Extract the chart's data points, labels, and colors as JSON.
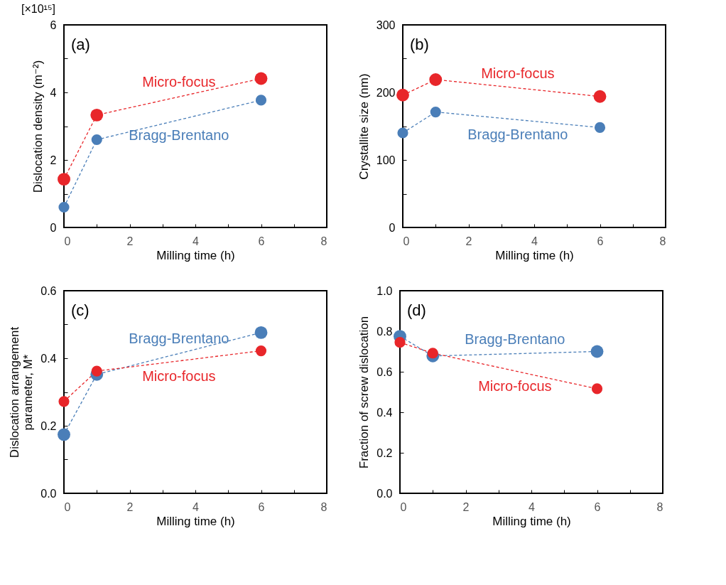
{
  "chart_data": [
    {
      "type": "line",
      "title": "(a)",
      "xlabel": "Milling time (h)",
      "ylabel": "Dislocation density (m⁻²)",
      "annotations": [
        "[×10¹⁵]"
      ],
      "x": [
        0,
        1,
        6
      ],
      "xlim": [
        0,
        8
      ],
      "xticks": [
        0,
        {
          "value": 1,
          "label": null
        },
        2,
        {
          "value": 3,
          "label": null
        },
        4,
        {
          "value": 5,
          "label": null
        },
        6,
        {
          "value": 7,
          "label": null
        },
        8
      ],
      "ylim": [
        0,
        6
      ],
      "yticks": [
        0,
        {
          "value": 1,
          "label": null
        },
        2,
        {
          "value": 3,
          "label": null
        },
        4,
        {
          "value": 5,
          "label": null
        },
        6
      ],
      "grid": false,
      "marker": "circle",
      "line_style": "dashed",
      "series": [
        {
          "name": "Micro-focus",
          "color": "#e8262a",
          "values": [
            1.43,
            3.33,
            4.41
          ]
        },
        {
          "name": "Bragg-Brentano",
          "color": "#4a7eb8",
          "values": [
            0.6,
            2.6,
            3.77
          ]
        }
      ]
    },
    {
      "type": "line",
      "title": "(b)",
      "xlabel": "Milling time (h)",
      "ylabel": "Crystallite size (nm)",
      "x": [
        0,
        1,
        6
      ],
      "xlim": [
        0,
        8
      ],
      "xticks": [
        0,
        {
          "value": 1,
          "label": null
        },
        2,
        {
          "value": 3,
          "label": null
        },
        4,
        {
          "value": 5,
          "label": null
        },
        6,
        {
          "value": 7,
          "label": null
        },
        8
      ],
      "ylim": [
        0,
        300
      ],
      "yticks": [
        0,
        {
          "value": 50,
          "label": null
        },
        100,
        {
          "value": 150,
          "label": null
        },
        200,
        {
          "value": 250,
          "label": null
        },
        300
      ],
      "grid": false,
      "marker": "circle",
      "line_style": "dashed",
      "series": [
        {
          "name": "Micro-focus",
          "color": "#e8262a",
          "values": [
            196,
            219,
            194
          ]
        },
        {
          "name": "Bragg-Brentano",
          "color": "#4a7eb8",
          "values": [
            140,
            171,
            148
          ]
        }
      ]
    },
    {
      "type": "line",
      "title": "(c)",
      "xlabel": "Milling time (h)",
      "ylabel": "Dislocation arrangement\nparameter, M*",
      "x": [
        0,
        1,
        6
      ],
      "xlim": [
        0,
        8
      ],
      "xticks": [
        0,
        {
          "value": 1,
          "label": null
        },
        2,
        {
          "value": 3,
          "label": null
        },
        4,
        {
          "value": 5,
          "label": null
        },
        6,
        {
          "value": 7,
          "label": null
        },
        8
      ],
      "ylim": [
        0,
        0.6
      ],
      "yticks": [
        {
          "value": 0,
          "label": "0.0"
        },
        {
          "value": 0.1,
          "label": null
        },
        0.2,
        {
          "value": 0.3,
          "label": null
        },
        0.4,
        {
          "value": 0.5,
          "label": null
        },
        0.6
      ],
      "grid": false,
      "marker": "circle",
      "line_style": "dashed",
      "series": [
        {
          "name": "Bragg-Brentano",
          "color": "#4a7eb8",
          "values": [
            0.174,
            0.352,
            0.476
          ]
        },
        {
          "name": "Micro-focus",
          "color": "#e8262a",
          "values": [
            0.272,
            0.362,
            0.422
          ]
        }
      ]
    },
    {
      "type": "line",
      "title": "(d)",
      "xlabel": "Milling time (h)",
      "ylabel": "Fraction of screw dislocation",
      "x": [
        0,
        1,
        6
      ],
      "xlim": [
        0,
        8
      ],
      "xticks": [
        0,
        {
          "value": 1,
          "label": null
        },
        2,
        {
          "value": 3,
          "label": null
        },
        4,
        {
          "value": 5,
          "label": null
        },
        6,
        {
          "value": 7,
          "label": null
        },
        8
      ],
      "ylim": [
        0,
        1
      ],
      "yticks": [
        {
          "value": 0,
          "label": "0.0"
        },
        0.2,
        0.4,
        0.6,
        0.8,
        {
          "value": 1,
          "label": "1.0"
        }
      ],
      "grid": false,
      "marker": "circle",
      "line_style": "dashed",
      "series": [
        {
          "name": "Bragg-Brentano",
          "color": "#4a7eb8",
          "values": [
            0.775,
            0.678,
            0.7
          ]
        },
        {
          "name": "Micro-focus",
          "color": "#e8262a",
          "values": [
            0.745,
            0.692,
            0.516
          ]
        }
      ]
    }
  ]
}
